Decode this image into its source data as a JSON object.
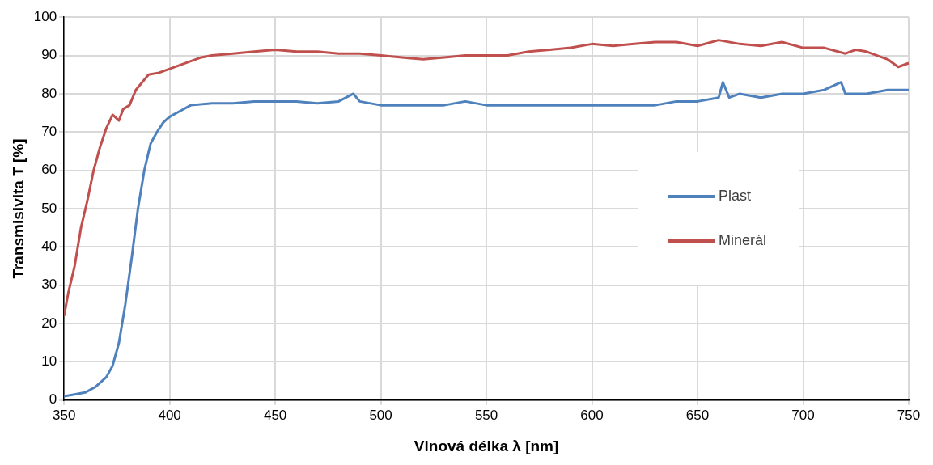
{
  "chart_data": {
    "type": "line",
    "xlabel": "Vlnová délka λ [nm]",
    "ylabel": "Transmisivita T [%]",
    "xlim": [
      350,
      750
    ],
    "xticks": [
      350,
      400,
      450,
      500,
      550,
      600,
      650,
      700,
      750
    ],
    "ylim": [
      0,
      100
    ],
    "yticks": [
      0,
      10,
      20,
      30,
      40,
      50,
      60,
      70,
      80,
      90,
      100
    ],
    "grid": true,
    "legend": "right",
    "marker": "none",
    "line_style": "solid",
    "series": [
      {
        "name": "Plast",
        "color": "#4f81bd",
        "x": [
          350,
          355,
          360,
          365,
          370,
          373,
          376,
          379,
          382,
          385,
          388,
          391,
          394,
          397,
          400,
          405,
          410,
          420,
          430,
          440,
          450,
          460,
          470,
          480,
          487,
          490,
          500,
          510,
          520,
          530,
          540,
          550,
          560,
          570,
          580,
          590,
          600,
          610,
          620,
          630,
          640,
          650,
          660,
          662,
          665,
          670,
          680,
          690,
          700,
          710,
          718,
          720,
          730,
          740,
          750
        ],
        "values": [
          1,
          1.5,
          2,
          3.5,
          6,
          9,
          15,
          25,
          37,
          50,
          60,
          67,
          70,
          72.5,
          74,
          75.5,
          77,
          77.5,
          77.5,
          78,
          78,
          78,
          77.5,
          78,
          80,
          78,
          77,
          77,
          77,
          77,
          78,
          77,
          77,
          77,
          77,
          77,
          77,
          77,
          77,
          77,
          78,
          78,
          79,
          83,
          79,
          80,
          79,
          80,
          80,
          81,
          83,
          80,
          80,
          81,
          81
        ]
      },
      {
        "name": "Minerál",
        "color": "#c0504d",
        "x": [
          350,
          352,
          355,
          358,
          361,
          364,
          367,
          370,
          373,
          376,
          378,
          381,
          384,
          387,
          390,
          395,
          400,
          405,
          410,
          415,
          420,
          430,
          440,
          450,
          460,
          470,
          480,
          490,
          500,
          510,
          520,
          530,
          540,
          550,
          560,
          570,
          580,
          590,
          600,
          610,
          620,
          630,
          640,
          650,
          660,
          670,
          680,
          690,
          700,
          710,
          720,
          725,
          730,
          740,
          745,
          750
        ],
        "values": [
          22,
          28,
          35,
          45,
          52,
          60,
          66,
          71,
          74.5,
          73,
          76,
          77,
          81,
          83,
          85,
          85.5,
          86.5,
          87.5,
          88.5,
          89.5,
          90,
          90.5,
          91,
          91.5,
          91,
          91,
          90.5,
          90.5,
          90,
          89.5,
          89,
          89.5,
          90,
          90,
          90,
          91,
          91.5,
          92,
          93,
          92.5,
          93,
          93.5,
          93.5,
          92.5,
          94,
          93,
          92.5,
          93.5,
          92,
          92,
          90.5,
          91.5,
          91,
          89,
          87,
          88
        ]
      }
    ]
  }
}
